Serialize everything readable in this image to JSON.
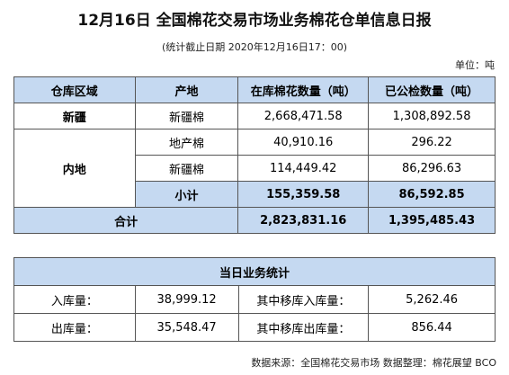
{
  "header": {
    "title": "12月16日 全国棉花交易市场业务棉花仓单信息日报",
    "subtitle": "(统计截止日期 2020年12月16日17：00)",
    "unit": "单位：吨"
  },
  "table": {
    "headers": [
      "仓库区域",
      "产地",
      "在库棉花数量（吨）",
      "已公检数量（吨）"
    ],
    "rows": [
      [
        "新疆",
        "新疆棉",
        "2,668,471.58",
        "1,308,892.58"
      ],
      [
        "内地",
        "地产棉",
        "40,910.16",
        "296.22"
      ],
      [
        "新疆棉",
        "114,449.42",
        "86,296.63"
      ],
      [
        "小计",
        "155,359.58",
        "86,592.85"
      ],
      [
        "合计",
        "2,823,831.16",
        "1,395,485.43"
      ]
    ]
  },
  "stats": {
    "title": "当日业务统计",
    "rows": [
      [
        "入库量：",
        "38,999.12",
        "其中移库入库量：",
        "5,262.46"
      ],
      [
        "出库量：",
        "35,548.47",
        "其中移库出库量：",
        "856.44"
      ]
    ]
  },
  "footer": "数据来源：全国棉花交易市场 数据整理：棉花展望 BCO"
}
